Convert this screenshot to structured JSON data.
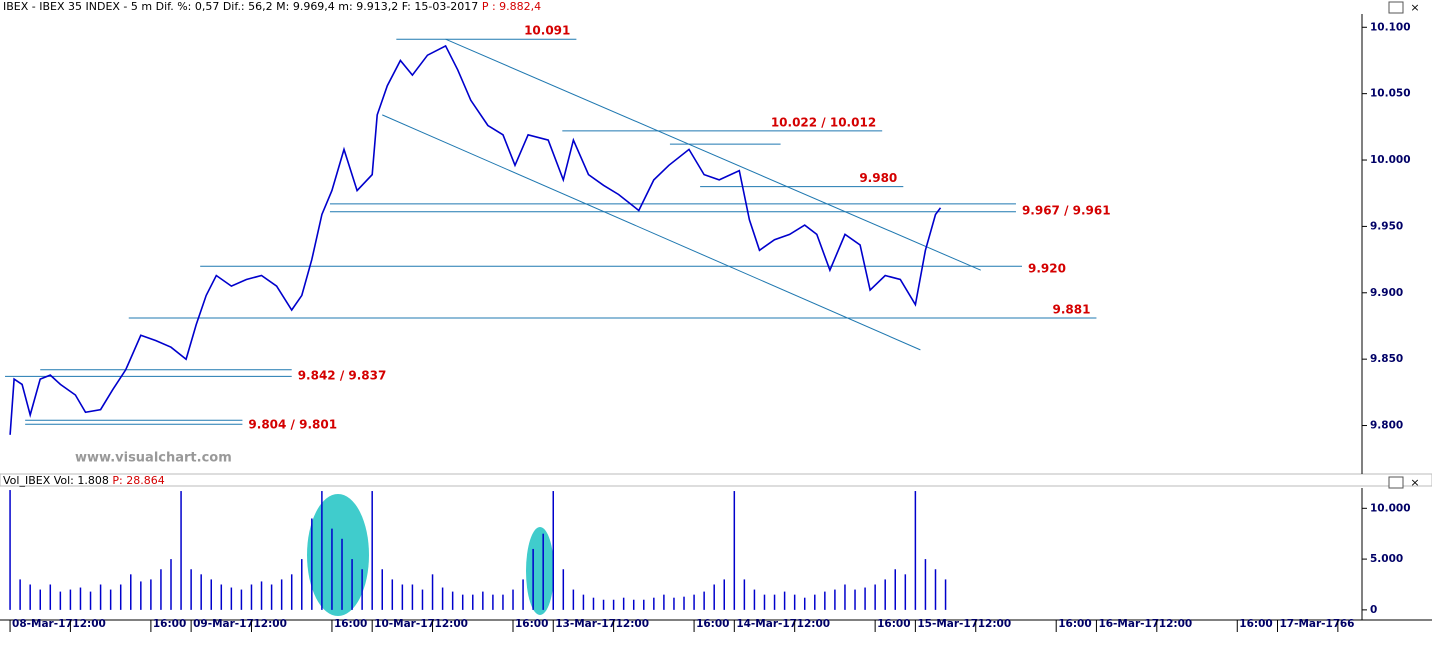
{
  "chart_data": [
    {
      "type": "line",
      "title": "IBEX - IBEX 35 INDEX - 5 m Dif. %: 0,57 Dif.: 56,2 M: 9.969,4 m: 9.913,2 F: 15-03-2017",
      "last": "P : 9.882,4",
      "watermark": "www.visualchart.com",
      "color": "#0000cc",
      "level_color": "#1f78b0",
      "label_color": "#d40000",
      "xlim": [
        -0.5,
        67.2
      ],
      "ylim": [
        9765,
        10110
      ],
      "yticks": [
        {
          "value": 10100,
          "label": "10.100"
        },
        {
          "value": 10050,
          "label": "10.050"
        },
        {
          "value": 10000,
          "label": "10.000"
        },
        {
          "value": 9950,
          "label": "9.950"
        },
        {
          "value": 9900,
          "label": "9.900"
        },
        {
          "value": 9850,
          "label": "9.850"
        },
        {
          "value": 9800,
          "label": "9.800"
        }
      ],
      "x": [
        0,
        0.2,
        0.6,
        1.0,
        1.5,
        2.0,
        2.5,
        3.25,
        3.75,
        4.5,
        5.1,
        5.75,
        6.5,
        7.25,
        8.0,
        8.75,
        9.25,
        9.75,
        10.25,
        11.0,
        11.75,
        12.5,
        13.25,
        14.0,
        14.5,
        15.0,
        15.5,
        16.0,
        16.6,
        17.25,
        18.0,
        18.25,
        18.75,
        19.4,
        20.0,
        20.75,
        21.65,
        22.25,
        22.9,
        23.75,
        24.5,
        25.1,
        25.75,
        26.75,
        27.5,
        28.0,
        28.75,
        29.5,
        30.25,
        31.25,
        32.0,
        32.75,
        33.75,
        34.5,
        35.25,
        36.25,
        36.75,
        37.25,
        38.0,
        38.75,
        39.5,
        40.1,
        40.75,
        41.5,
        42.25,
        42.75,
        43.5,
        44.25,
        45.0,
        45.5,
        46.0,
        46.25
      ],
      "values": [
        9793,
        9835,
        9831,
        9808,
        9835,
        9838,
        9831,
        9823,
        9810,
        9812,
        9827,
        9842,
        9868,
        9864,
        9859,
        9850,
        9876,
        9898,
        9913,
        9905,
        9910,
        9913,
        9905,
        9887,
        9898,
        9925,
        9959,
        9977,
        10008,
        9977,
        9989,
        10034,
        10056,
        10075,
        10064,
        10079,
        10086,
        10068,
        10045,
        10026,
        10019,
        9996,
        10019,
        10015,
        9985,
        10015,
        9989,
        9981,
        9974,
        9962,
        9985,
        9996,
        10008,
        9989,
        9985,
        9992,
        9955,
        9932,
        9940,
        9944,
        9951,
        9944,
        9917,
        9944,
        9936,
        9902,
        9913,
        9910,
        9891,
        9932,
        9959,
        9964
      ],
      "levels": [
        {
          "label": "10.091",
          "position": "inside",
          "lines": [
            {
              "value": 10091,
              "x": [
                19.2,
                28.15
              ]
            }
          ]
        },
        {
          "label": "10.022 / 10.012",
          "position": "inside",
          "lines": [
            {
              "value": 10022,
              "x": [
                27.45,
                43.35
              ]
            },
            {
              "value": 10012,
              "x": [
                32.8,
                38.3
              ]
            }
          ]
        },
        {
          "label": "9.980",
          "position": "inside",
          "lines": [
            {
              "value": 9980,
              "x": [
                34.3,
                44.4
              ]
            }
          ]
        },
        {
          "label": "9.967 / 9.961",
          "position": "after",
          "lines": [
            {
              "value": 9967,
              "x": [
                15.9,
                50
              ]
            },
            {
              "value": 9961,
              "x": [
                15.9,
                50
              ]
            }
          ]
        },
        {
          "label": "9.920",
          "position": "after",
          "lines": [
            {
              "value": 9920,
              "x": [
                9.45,
                50.3
              ]
            }
          ]
        },
        {
          "label": "9.881",
          "position": "inside",
          "lines": [
            {
              "value": 9881,
              "x": [
                5.9,
                54
              ]
            }
          ]
        },
        {
          "label": "9.842 / 9.837",
          "position": "after",
          "lines": [
            {
              "value": 9842,
              "x": [
                1.5,
                14
              ]
            },
            {
              "value": 9837,
              "x": [
                -0.25,
                14
              ]
            }
          ]
        },
        {
          "label": "9.804 / 9.801",
          "position": "after",
          "lines": [
            {
              "value": 9804,
              "x": [
                0.75,
                11.55
              ]
            },
            {
              "value": 9801,
              "x": [
                0.75,
                11.55
              ]
            }
          ]
        }
      ],
      "trendlines": [
        {
          "x": [
            21.65,
            48.25
          ],
          "values": [
            10091,
            9917
          ]
        },
        {
          "x": [
            18.5,
            45.25
          ],
          "values": [
            10034,
            9857
          ]
        }
      ]
    },
    {
      "type": "bar",
      "title": "Vol_IBEX Vol: 1.808",
      "last": "P: 28.864",
      "color": "#0000cc",
      "xlim": [
        -0.5,
        67.2
      ],
      "ylim": [
        -800,
        12000
      ],
      "yticks": [
        {
          "value": 10000,
          "label": "10.000"
        },
        {
          "value": 5000,
          "label": "5.000"
        },
        0
      ],
      "xticks": [
        {
          "value": 0,
          "label": "08-Mar-17"
        },
        {
          "value": 3,
          "label": "12:00"
        },
        {
          "value": 7,
          "label": "16:00"
        },
        {
          "value": 9,
          "label": "09-Mar-17"
        },
        {
          "value": 12,
          "label": "12:00"
        },
        {
          "value": 16,
          "label": "16:00"
        },
        {
          "value": 18,
          "label": "10-Mar-17"
        },
        {
          "value": 21,
          "label": "12:00"
        },
        {
          "value": 25,
          "label": "16:00"
        },
        {
          "value": 27,
          "label": "13-Mar-17"
        },
        {
          "value": 30,
          "label": "12:00"
        },
        {
          "value": 34,
          "label": "16:00"
        },
        {
          "value": 36,
          "label": "14-Mar-17"
        },
        {
          "value": 39,
          "label": "12:00"
        },
        {
          "value": 43,
          "label": "16:00"
        },
        {
          "value": 45,
          "label": "15-Mar-17"
        },
        {
          "value": 48,
          "label": "12:00"
        },
        {
          "value": 52,
          "label": "16:00"
        },
        {
          "value": 54,
          "label": "16-Mar-17"
        },
        {
          "value": 57,
          "label": "12:00"
        },
        {
          "value": 61,
          "label": "16:00"
        },
        {
          "value": 63,
          "label": "17-Mar-17"
        },
        66
      ],
      "x": [
        0,
        0.5,
        1,
        1.5,
        2,
        2.5,
        3,
        3.5,
        4,
        4.5,
        5,
        5.5,
        6,
        6.5,
        7,
        7.5,
        8,
        8.5,
        9,
        9.5,
        10,
        10.5,
        11,
        11.5,
        12,
        12.5,
        13,
        13.5,
        14,
        14.5,
        15,
        15.5,
        16,
        16.5,
        17,
        17.5,
        18,
        18.5,
        19,
        19.5,
        20,
        20.5,
        21,
        21.5,
        22,
        22.5,
        23,
        23.5,
        24,
        24.5,
        25,
        25.5,
        26,
        26.5,
        27,
        27.5,
        28,
        28.5,
        29,
        29.5,
        30,
        30.5,
        31,
        31.5,
        32,
        32.5,
        33,
        33.5,
        34,
        34.5,
        35,
        35.5,
        36,
        36.5,
        37,
        37.5,
        38,
        38.5,
        39,
        39.5,
        40,
        40.5,
        41,
        41.5,
        42,
        42.5,
        43,
        43.5,
        44,
        44.5,
        45,
        45.5,
        46,
        46.5
      ],
      "values": [
        11800,
        3000,
        2500,
        2000,
        2500,
        1800,
        2000,
        2200,
        1800,
        2500,
        2000,
        2500,
        3500,
        2800,
        3000,
        4000,
        5000,
        11700,
        4000,
        3500,
        3000,
        2500,
        2200,
        2000,
        2500,
        2800,
        2500,
        3000,
        3500,
        5000,
        9000,
        11700,
        8000,
        7000,
        5000,
        4000,
        11700,
        4000,
        3000,
        2500,
        2500,
        2000,
        3500,
        2200,
        1800,
        1500,
        1500,
        1800,
        1500,
        1500,
        2000,
        3000,
        6000,
        7500,
        11700,
        4000,
        2000,
        1500,
        1200,
        1000,
        1000,
        1200,
        1000,
        1000,
        1200,
        1500,
        1200,
        1300,
        1500,
        1800,
        2500,
        3000,
        11700,
        3000,
        2000,
        1500,
        1500,
        1800,
        1500,
        1200,
        1500,
        1800,
        2000,
        2500,
        2000,
        2200,
        2500,
        3000,
        4000,
        3500,
        11700,
        5000,
        4000,
        3000
      ]
    }
  ]
}
